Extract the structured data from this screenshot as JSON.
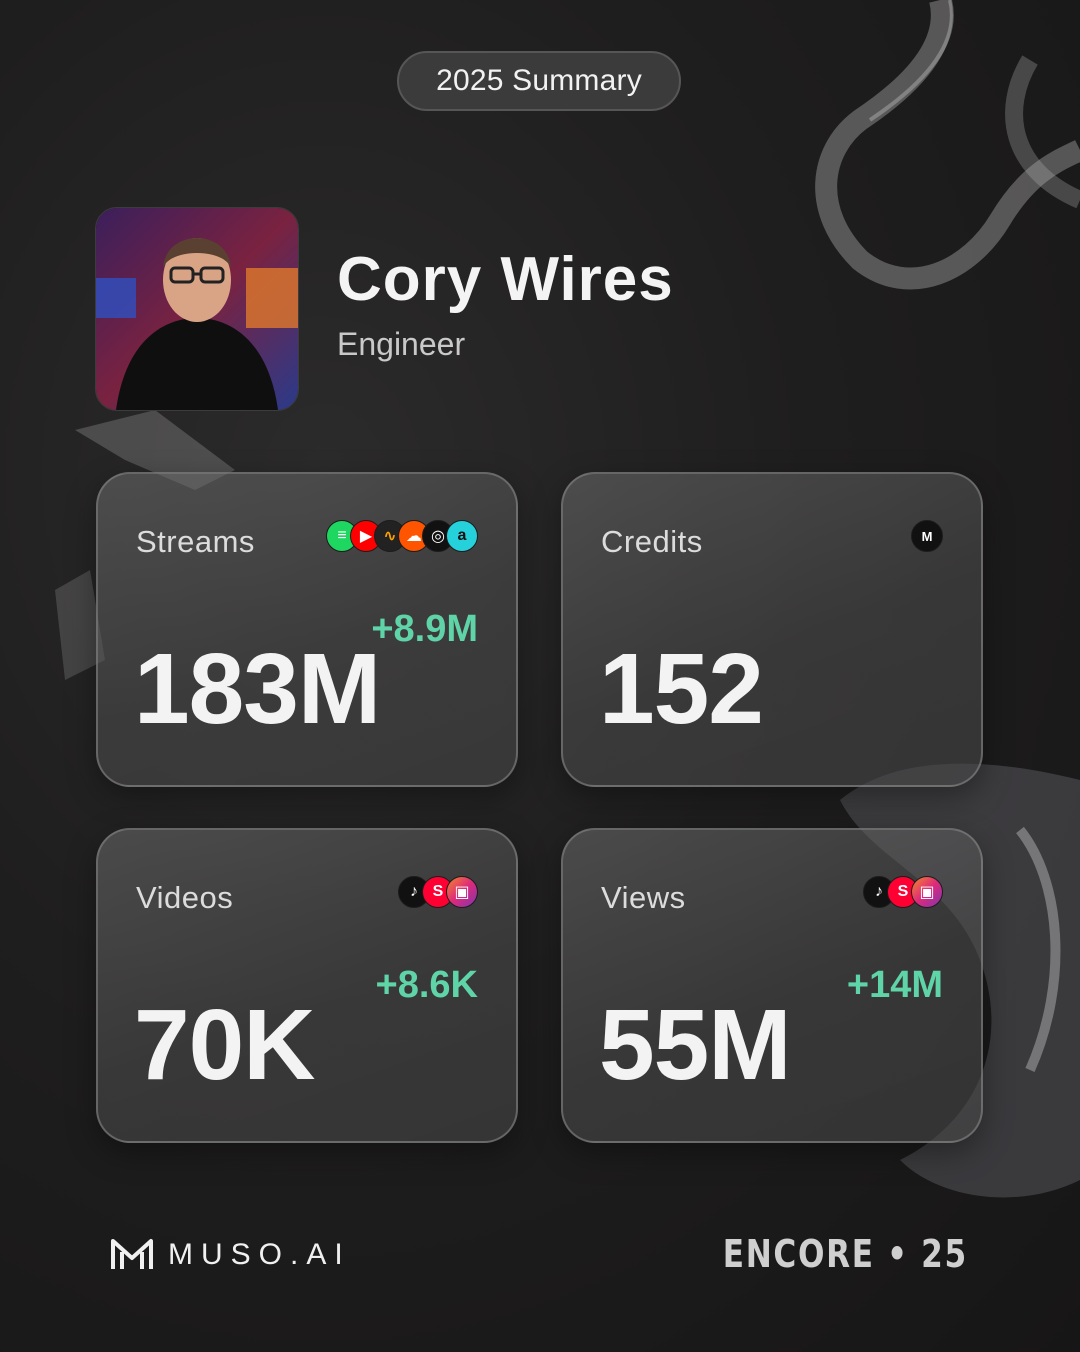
{
  "header": {
    "summary_label": "2025 Summary"
  },
  "profile": {
    "name": "Cory Wires",
    "role": "Engineer"
  },
  "cards": {
    "streams": {
      "label": "Streams",
      "value": "183M",
      "delta": "+8.9M",
      "icons": [
        "spotify-icon",
        "youtube-icon",
        "audiomack-icon",
        "soundcloud-icon",
        "apple-music-icon",
        "amazon-music-icon"
      ]
    },
    "credits": {
      "label": "Credits",
      "value": "152",
      "icons": [
        "muso-ai-icon"
      ]
    },
    "videos": {
      "label": "Videos",
      "value": "70K",
      "delta": "+8.6K",
      "icons": [
        "tiktok-icon",
        "youtube-shorts-icon",
        "instagram-reels-icon"
      ]
    },
    "views": {
      "label": "Views",
      "value": "55M",
      "delta": "+14M",
      "icons": [
        "tiktok-icon",
        "youtube-shorts-icon",
        "instagram-reels-icon"
      ]
    }
  },
  "footer": {
    "brand": "MUSO.AI",
    "event": "ENCORE • 25"
  },
  "colors": {
    "accent_delta": "#5fd4a8",
    "background": "#1f1e1e",
    "card": "#4e4e4e"
  }
}
